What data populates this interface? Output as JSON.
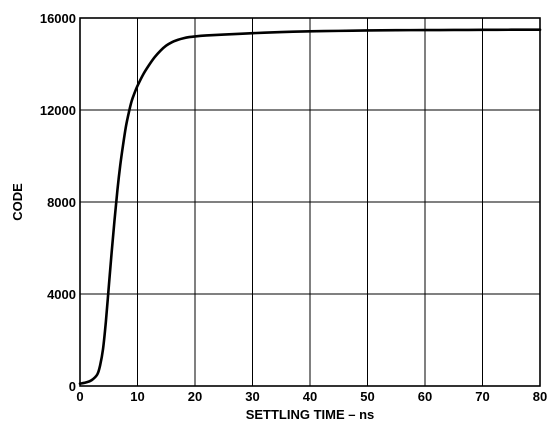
{
  "chart_data": {
    "type": "line",
    "title": "",
    "xlabel": "SETTLING TIME – ns",
    "ylabel": "CODE",
    "xlim": [
      0,
      80
    ],
    "ylim": [
      0,
      16000
    ],
    "grid": true,
    "x_ticks": [
      0,
      10,
      20,
      30,
      40,
      50,
      60,
      70,
      80
    ],
    "y_ticks": [
      0,
      4000,
      8000,
      12000,
      16000
    ],
    "series": [
      {
        "x": [
          0,
          1,
          2,
          3,
          3.5,
          4,
          4.5,
          5,
          5.5,
          6,
          6.5,
          7,
          7.5,
          8,
          8.5,
          9,
          9.5,
          10,
          11,
          12,
          13,
          14,
          15,
          16,
          17,
          18,
          19,
          20,
          22,
          25,
          30,
          35,
          40,
          45,
          50,
          55,
          60,
          65,
          70,
          75,
          80
        ],
        "y": [
          100,
          150,
          250,
          500,
          900,
          1600,
          2800,
          4300,
          5800,
          7200,
          8500,
          9600,
          10500,
          11300,
          11900,
          12400,
          12750,
          13050,
          13550,
          13950,
          14300,
          14580,
          14800,
          14950,
          15050,
          15120,
          15170,
          15200,
          15240,
          15280,
          15340,
          15390,
          15420,
          15440,
          15460,
          15470,
          15475,
          15480,
          15485,
          15490,
          15490
        ]
      }
    ]
  }
}
